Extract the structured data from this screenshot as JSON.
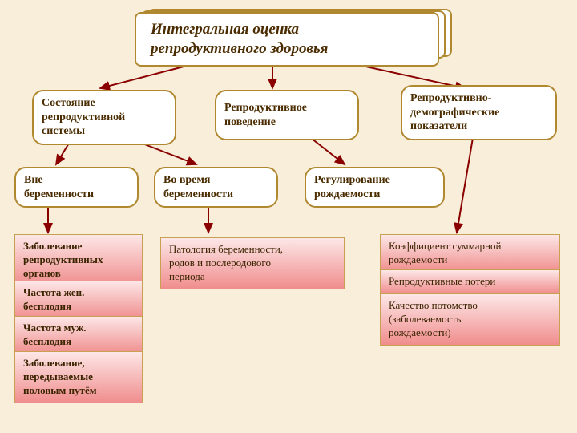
{
  "type": "tree",
  "background_color": "#f8eed9",
  "stroke_color": "#b08830",
  "arrow_color": "#8a0000",
  "pink_gradient": [
    "#fde7e7",
    "#f08d8d"
  ],
  "font_family": "Georgia",
  "title": "Интегральная оценка\nрепродуктивного здоровья",
  "level1": {
    "n1": "Состояние\nрепродуктивной\nсистемы",
    "n2": "Репродуктивное\nповедение",
    "n3": "Репродуктивно-\nдемографические\nпоказатели"
  },
  "level2": {
    "n1": "Вне\nберемeнности",
    "n2": "Во время\nберемeнности",
    "n3": "Регулирование\nрождаемости"
  },
  "leaves_left": [
    "Заболевание\nрепродуктивных\nорганов",
    "Частота жен.\nбесплодия",
    "Частота муж.\nбесплодия",
    "Заболевание,\nпередываемые\nполовым путём"
  ],
  "leaf_center": "Патология беременности,\nродов и послеродового\nпериода",
  "leaves_right": [
    "Коэффициент суммарной\nрождаемости",
    "Репродуктивные потери",
    "Качество потомство\n(заболеваемость\nрождаемости)"
  ]
}
